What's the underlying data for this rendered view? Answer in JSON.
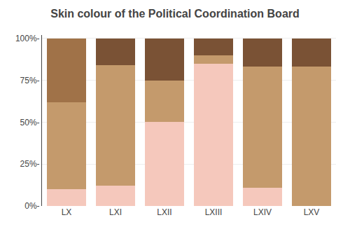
{
  "chart_data": {
    "type": "bar",
    "stacked": true,
    "title": "Skin colour of the Political Coordination Board",
    "categories": [
      "LX",
      "LXI",
      "LXII",
      "LXIII",
      "LXIV",
      "LXV"
    ],
    "series": [
      {
        "color": "#f5c8bc",
        "values": [
          0.1,
          0.12,
          0.5,
          0.85,
          0.11,
          0.0
        ]
      },
      {
        "color": "#c49a6c",
        "values": [
          0.52,
          0.72,
          0.25,
          0.05,
          0.72,
          0.83
        ]
      },
      {
        "color": "#a07248",
        "values": [
          0.38,
          0.0,
          0.0,
          0.0,
          0.0,
          0.0
        ]
      },
      {
        "color": "#7a5235",
        "values": [
          0.0,
          0.16,
          0.25,
          0.1,
          0.17,
          0.17
        ]
      }
    ],
    "ylim": [
      0,
      1.02
    ],
    "yticks": [
      {
        "value": 0.0,
        "label": "0%-"
      },
      {
        "value": 0.25,
        "label": "25%-"
      },
      {
        "value": 0.5,
        "label": "50%-"
      },
      {
        "value": 0.75,
        "label": "75%-"
      },
      {
        "value": 1.0,
        "label": "100%-"
      }
    ],
    "grid": true
  }
}
